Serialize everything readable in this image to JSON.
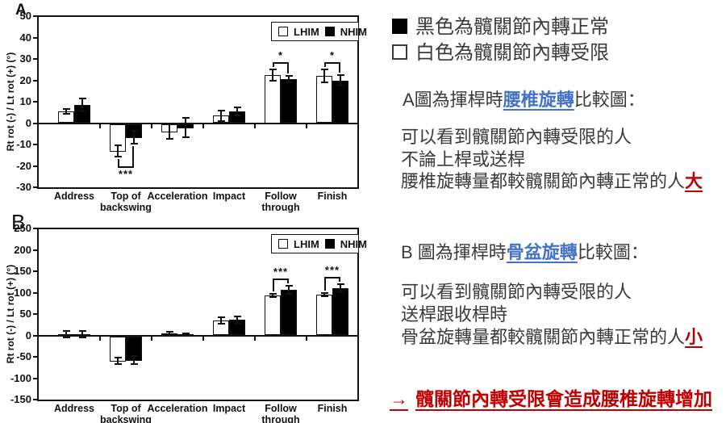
{
  "chart_data": [
    {
      "id": "A",
      "type": "bar",
      "panel_label": "A",
      "ylabel": "Rt rot (-) / Lt rot (+) (°)",
      "ylim": [
        -30,
        50
      ],
      "yticks": [
        50,
        40,
        30,
        20,
        10,
        0,
        -10,
        -20,
        -30
      ],
      "grid": false,
      "legend_position": "top-right",
      "legend": [
        "LHIM",
        "NHIM"
      ],
      "categories": [
        [
          "Address"
        ],
        [
          "Top of",
          "backswing"
        ],
        [
          "Acceleration"
        ],
        [
          "Impact"
        ],
        [
          "Follow",
          "through"
        ],
        [
          "Finish"
        ]
      ],
      "series": [
        {
          "name": "LHIM",
          "fill": "#FFFFFF",
          "values": [
            5.5,
            -13,
            -4,
            3.5,
            22.5,
            22
          ],
          "errors": [
            1,
            2.5,
            3.5,
            2.5,
            2.5,
            3
          ]
        },
        {
          "name": "NHIM",
          "fill": "#000000",
          "values": [
            8.5,
            -6.5,
            -2,
            5.5,
            20.5,
            20
          ],
          "errors": [
            3,
            3,
            4.5,
            2,
            1.5,
            2.5
          ]
        }
      ],
      "significance": [
        {
          "category_index": 1,
          "label": "***",
          "position": "below"
        },
        {
          "category_index": 4,
          "label": "*",
          "position": "above"
        },
        {
          "category_index": 5,
          "label": "*",
          "position": "above"
        }
      ]
    },
    {
      "id": "B",
      "type": "bar",
      "panel_label": "B",
      "ylabel": "Rt rot (-) / Lt rot (+) (°)",
      "ylim": [
        -150,
        250
      ],
      "yticks": [
        250,
        200,
        150,
        100,
        50,
        0,
        -50,
        -100,
        -150
      ],
      "grid": false,
      "legend_position": "top-right",
      "legend": [
        "LHIM",
        "NHIM"
      ],
      "categories": [
        [
          "Address"
        ],
        [
          "Top of",
          "backswing"
        ],
        [
          "Acceleration"
        ],
        [
          "Impact"
        ],
        [
          "Follow",
          "through"
        ],
        [
          "Finish"
        ]
      ],
      "series": [
        {
          "name": "LHIM",
          "fill": "#FFFFFF",
          "values": [
            3,
            -59,
            5,
            35,
            93,
            95
          ],
          "errors": [
            8,
            8,
            3,
            7,
            4,
            4
          ]
        },
        {
          "name": "NHIM",
          "fill": "#000000",
          "values": [
            3,
            -58,
            3,
            36,
            107,
            110
          ],
          "errors": [
            7,
            9,
            2,
            9,
            9,
            9
          ]
        }
      ],
      "significance": [
        {
          "category_index": 4,
          "label": "***",
          "position": "above"
        },
        {
          "category_index": 5,
          "label": "***",
          "position": "above"
        }
      ]
    }
  ],
  "right_panel": {
    "color_key": [
      {
        "swatch": "black",
        "label": "黑色為髖關節內轉正常"
      },
      {
        "swatch": "white",
        "label": "白色為髖關節內轉受限"
      }
    ],
    "section_a": {
      "heading_prefix": "A圖為揮桿時",
      "heading_highlight": "腰椎旋轉",
      "heading_suffix": "比較圖：",
      "line1": "可以看到髖關節內轉受限的人",
      "line2": "不論上桿或送桿",
      "line3_prefix": "腰椎旋轉量都較髖關節內轉正常的人",
      "line3_accent": "大"
    },
    "section_b": {
      "heading_prefix": "B 圖為揮桿時",
      "heading_highlight": "骨盆旋轉",
      "heading_suffix": "比較圖：",
      "line1": "可以看到髖關節內轉受限的人",
      "line2": "送桿跟收桿時",
      "line3_prefix": "骨盆旋轉量都較髖關節內轉正常的人",
      "line3_accent": "小"
    },
    "conclusion": {
      "arrow": "→",
      "text": "髖關節內轉受限會造成腰椎旋轉增加"
    },
    "colors": {
      "highlight_blue": "#4472C4",
      "accent_red": "#C00000",
      "bar_black": "#000000",
      "bar_white": "#FFFFFF"
    }
  }
}
